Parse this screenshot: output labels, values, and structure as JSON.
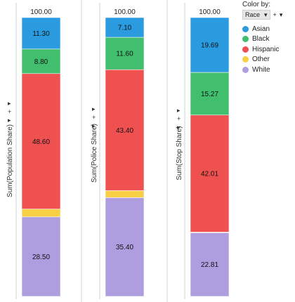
{
  "legend": {
    "title": "Color by:",
    "select_value": "Race",
    "select_arrow": "▾",
    "add_button": "+",
    "add_arrow": "▾"
  },
  "panel_controls": {
    "arrow": "▸",
    "plus": "+"
  },
  "colors": {
    "Asian": "#2b9be0",
    "Black": "#41bf6e",
    "Hispanic": "#ee5150",
    "Other": "#f7d046",
    "White": "#ae9ee0"
  },
  "chart_data": [
    {
      "type": "bar",
      "stacked": true,
      "ylabel": "Sum(Population Share)",
      "total_label": "100.00",
      "ylim": [
        0,
        100
      ],
      "series": [
        {
          "name": "Asian",
          "value": 11.3,
          "label": "11.30"
        },
        {
          "name": "Black",
          "value": 8.8,
          "label": "8.80"
        },
        {
          "name": "Hispanic",
          "value": 48.6,
          "label": "48.60"
        },
        {
          "name": "Other",
          "value": 2.8,
          "label": ""
        },
        {
          "name": "White",
          "value": 28.5,
          "label": "28.50"
        }
      ]
    },
    {
      "type": "bar",
      "stacked": true,
      "ylabel": "Sum(Police Share)",
      "total_label": "100.00",
      "ylim": [
        0,
        100
      ],
      "series": [
        {
          "name": "Asian",
          "value": 7.1,
          "label": "7.10"
        },
        {
          "name": "Black",
          "value": 11.6,
          "label": "11.60"
        },
        {
          "name": "Hispanic",
          "value": 43.4,
          "label": "43.40"
        },
        {
          "name": "Other",
          "value": 2.5,
          "label": ""
        },
        {
          "name": "White",
          "value": 35.4,
          "label": "35.40"
        }
      ]
    },
    {
      "type": "bar",
      "stacked": true,
      "ylabel": "Sum(Stop Share)",
      "total_label": "100.00",
      "ylim": [
        0,
        100
      ],
      "series": [
        {
          "name": "Asian",
          "value": 19.69,
          "label": "19.69"
        },
        {
          "name": "Black",
          "value": 15.27,
          "label": "15.27"
        },
        {
          "name": "Hispanic",
          "value": 42.01,
          "label": "42.01"
        },
        {
          "name": "Other",
          "value": 0.22,
          "label": ""
        },
        {
          "name": "White",
          "value": 22.81,
          "label": "22.81"
        }
      ]
    }
  ]
}
